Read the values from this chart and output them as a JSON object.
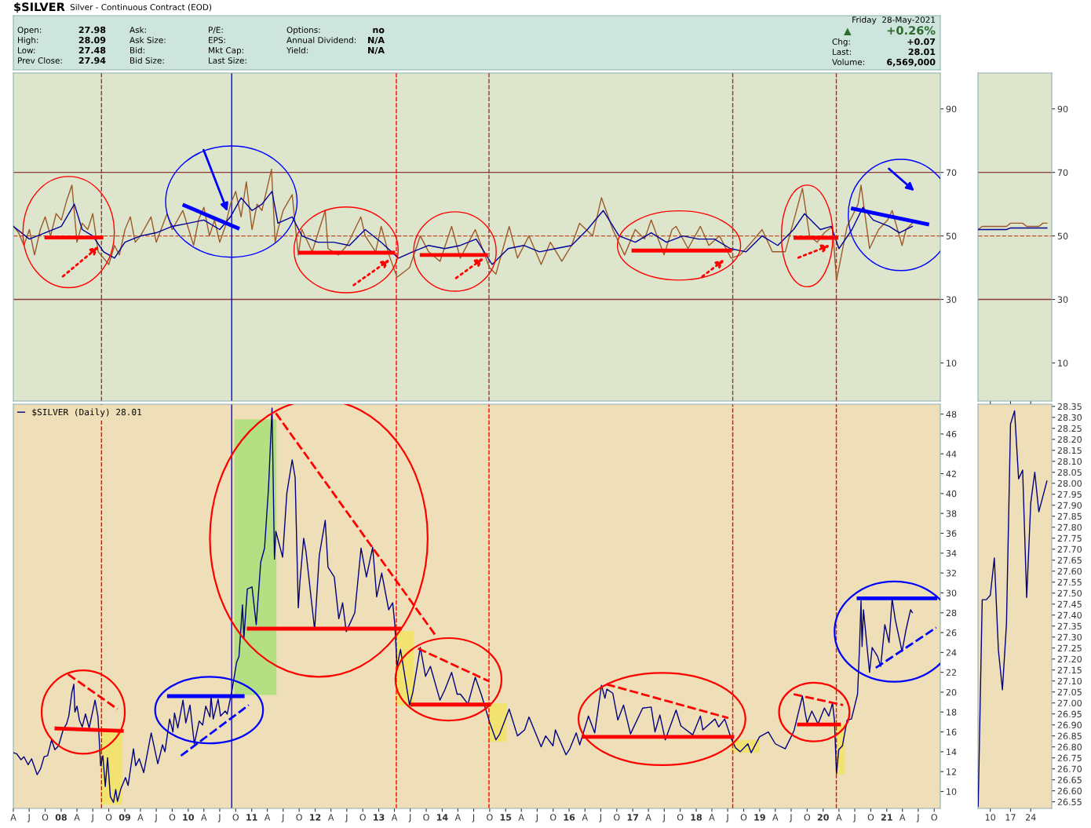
{
  "chart_data": [
    {
      "type": "other",
      "title": "$SILVER",
      "subtitle": "Silver - Continuous Contract (EOD)",
      "annotations": [
        "Open:",
        "27.98",
        "High:",
        "28.09",
        "Low:",
        "27.48",
        "Prev Close:",
        "27.94",
        "Ask:",
        "Ask Size:",
        "Bid:",
        "Bid Size:",
        "P/E:",
        "EPS:",
        "Mkt Cap:",
        "Last Size:",
        "Options:",
        "no",
        "Annual Dividend:",
        "N/A",
        "Yield:",
        "N/A",
        "Friday  28-May-2021",
        "▲",
        "+0.26%",
        "Chg:",
        "+0.07",
        "Last:",
        "28.01",
        "Volume:",
        "6,569,000"
      ]
    },
    {
      "type": "line",
      "xlim": [
        "2007-04-01",
        "2021-11-05"
      ],
      "ylim": [
        -2,
        101.3
      ],
      "yticks": [
        10,
        30,
        50,
        70,
        90
      ],
      "tick_labels": "y",
      "grid": false,
      "legend": false,
      "marker": "none",
      "series": [
        {
          "color": "#9c5a2a",
          "x": [
            "2007-04-02",
            "2007-05-01",
            "2007-06-01",
            "2007-07-02",
            "2007-08-01",
            "2007-09-03",
            "2007-10-01",
            "2007-11-01",
            "2007-12-03",
            "2008-01-02",
            "2008-02-01",
            "2008-03-03",
            "2008-04-01",
            "2008-05-01",
            "2008-06-02",
            "2008-07-01",
            "2008-08-01",
            "2008-09-01",
            "2008-10-01",
            "2008-11-03",
            "2008-12-01",
            "2009-01-02",
            "2009-02-02",
            "2009-03-02",
            "2009-04-01",
            "2009-06-01",
            "2009-07-01",
            "2009-09-01",
            "2009-10-01",
            "2009-12-01",
            "2010-01-04",
            "2010-02-01",
            "2010-03-01",
            "2010-04-01",
            "2010-05-03",
            "2010-06-01",
            "2010-07-01",
            "2010-08-02",
            "2010-09-01",
            "2010-10-01",
            "2010-11-01",
            "2010-12-01",
            "2011-01-03",
            "2011-02-01",
            "2011-03-01",
            "2011-04-25",
            "2011-05-16",
            "2011-06-01",
            "2011-07-01",
            "2011-08-22",
            "2011-09-26",
            "2011-10-17",
            "2011-12-15",
            "2012-02-28",
            "2012-03-15",
            "2012-05-15",
            "2012-07-02",
            "2012-09-20",
            "2012-10-15",
            "2012-12-14",
            "2013-01-15",
            "2013-03-01",
            "2013-04-16",
            "2013-06-27",
            "2013-08-28",
            "2013-10-15",
            "2013-12-19",
            "2014-02-24",
            "2014-04-15",
            "2014-06-02",
            "2014-07-10",
            "2014-09-30",
            "2014-11-06",
            "2015-01-21",
            "2015-03-10",
            "2015-05-15",
            "2015-07-24",
            "2015-09-15",
            "2015-11-20",
            "2016-01-15",
            "2016-03-01",
            "2016-05-15",
            "2016-07-05",
            "2016-09-08",
            "2016-11-15",
            "2017-01-15",
            "2017-03-10",
            "2017-04-17",
            "2017-06-30",
            "2017-08-15",
            "2017-09-07",
            "2017-11-15",
            "2018-01-25",
            "2018-03-15",
            "2018-05-15",
            "2018-07-20",
            "2018-09-11",
            "2018-11-15",
            "2019-01-15",
            "2019-03-15",
            "2019-05-28",
            "2019-07-17",
            "2019-09-04",
            "2019-10-15",
            "2019-11-28",
            "2020-01-08",
            "2020-02-24",
            "2020-03-18",
            "2020-05-18",
            "2020-07-20",
            "2020-08-06",
            "2020-09-24",
            "2020-11-15",
            "2021-01-06",
            "2021-02-01",
            "2021-03-30",
            "2021-04-22",
            "2021-05-28"
          ],
          "values": [
            53,
            51,
            47,
            52,
            44,
            52,
            56,
            50,
            57,
            55,
            61,
            66,
            48,
            54,
            52,
            57,
            45,
            43,
            41,
            47,
            44,
            52,
            56,
            48,
            50,
            56,
            48,
            57,
            52,
            58,
            52,
            47,
            55,
            59,
            50,
            55,
            48,
            53,
            60,
            64,
            56,
            67,
            52,
            60,
            58,
            71,
            48,
            52,
            58,
            63,
            44,
            52,
            45,
            58,
            46,
            44,
            47,
            56,
            50,
            45,
            53,
            44,
            37,
            40,
            50,
            45,
            42,
            53,
            43,
            48,
            52,
            40,
            38,
            53,
            43,
            50,
            41,
            48,
            42,
            47,
            54,
            50,
            62,
            52,
            44,
            52,
            49,
            55,
            44,
            52,
            53,
            46,
            53,
            47,
            50,
            43,
            44,
            48,
            52,
            45,
            45,
            55,
            65,
            50,
            48,
            51,
            53,
            36,
            53,
            60,
            66,
            46,
            52,
            55,
            58,
            47,
            52,
            54
          ]
        },
        {
          "color": "#000099",
          "x": [
            "2007-04-02",
            "2007-07-02",
            "2007-10-01",
            "2008-01-02",
            "2008-03-17",
            "2008-05-01",
            "2008-07-01",
            "2008-09-01",
            "2008-11-03",
            "2009-01-02",
            "2009-04-01",
            "2009-07-01",
            "2009-10-01",
            "2010-01-04",
            "2010-04-01",
            "2010-07-01",
            "2010-09-01",
            "2010-11-01",
            "2011-01-03",
            "2011-03-01",
            "2011-04-28",
            "2011-06-01",
            "2011-08-22",
            "2011-10-17",
            "2012-01-16",
            "2012-04-16",
            "2012-07-16",
            "2012-10-15",
            "2013-01-15",
            "2013-04-25",
            "2013-07-15",
            "2013-10-15",
            "2014-01-15",
            "2014-04-15",
            "2014-07-15",
            "2014-10-15",
            "2015-01-15",
            "2015-04-15",
            "2015-07-15",
            "2015-10-15",
            "2016-01-15",
            "2016-04-15",
            "2016-07-15",
            "2016-10-14",
            "2017-01-16",
            "2017-04-17",
            "2017-07-14",
            "2017-10-16",
            "2018-01-15",
            "2018-04-16",
            "2018-07-16",
            "2018-10-15",
            "2019-01-15",
            "2019-04-15",
            "2019-07-15",
            "2019-09-16",
            "2019-12-16",
            "2020-02-17",
            "2020-04-01",
            "2020-06-15",
            "2020-08-17",
            "2020-10-15",
            "2021-01-15",
            "2021-03-15",
            "2021-05-28"
          ],
          "values": [
            53,
            49,
            51,
            53,
            60,
            52,
            50,
            45,
            43,
            48,
            50,
            51,
            53,
            54,
            55,
            52,
            56,
            62,
            58,
            60,
            64,
            54,
            56,
            50,
            48,
            48,
            47,
            52,
            48,
            43,
            45,
            47,
            46,
            47,
            49,
            41,
            46,
            47,
            45,
            46,
            47,
            52,
            58,
            50,
            48,
            51,
            48,
            50,
            49,
            49,
            46,
            45,
            50,
            47,
            52,
            57,
            52,
            53,
            46,
            52,
            59,
            55,
            53,
            51,
            53
          ]
        },
        {
          "color": "#ff0000",
          "line_style": "solid",
          "x": [
            "2007-10-08",
            "2008-08-20"
          ],
          "values": [
            49.5,
            49.5
          ]
        },
        {
          "color": "#ff0000",
          "line_style": "solid",
          "x": [
            "2011-10-08",
            "2013-03-25"
          ],
          "values": [
            44.7,
            44.7
          ]
        },
        {
          "color": "#ff0000",
          "line_style": "solid",
          "x": [
            "2013-09-05",
            "2014-09-10"
          ],
          "values": [
            44,
            44
          ]
        },
        {
          "color": "#ff0000",
          "line_style": "solid",
          "x": [
            "2017-01-05",
            "2018-07-15"
          ],
          "values": [
            45.4,
            45.4
          ]
        },
        {
          "color": "#ff0000",
          "line_style": "solid",
          "x": [
            "2019-07-26",
            "2020-03-17"
          ],
          "values": [
            49.4,
            49.4
          ]
        },
        {
          "color": "#0000ff",
          "line_style": "solid",
          "x": [
            "2009-12-10",
            "2010-10-12"
          ],
          "values": [
            59.6,
            52.5
          ]
        },
        {
          "color": "#0000ff",
          "line_style": "solid",
          "x": [
            "2020-06-20",
            "2021-08-22"
          ],
          "values": [
            58.6,
            53.7
          ]
        }
      ],
      "ref_lines": [
        {
          "axis": "y",
          "value": 70,
          "color": "#8b3a3a",
          "line_style": "solid"
        },
        {
          "axis": "y",
          "value": 30,
          "color": "#8b3a3a",
          "line_style": "solid"
        },
        {
          "axis": "y",
          "value": 50,
          "color": "#c0502a",
          "line_style": "dashed"
        },
        {
          "axis": "x",
          "value": "2008-08-20",
          "color": "#8b3a3a",
          "line_style": "dashed"
        },
        {
          "axis": "x",
          "value": "2010-09-08",
          "color": "#0000ff",
          "line_style": "solid"
        },
        {
          "axis": "x",
          "value": "2013-04-12",
          "color": "#ff0000",
          "line_style": "dashed"
        },
        {
          "axis": "x",
          "value": "2014-09-27",
          "color": "#8b3a3a",
          "line_style": "dashed"
        },
        {
          "axis": "x",
          "value": "2018-07-30",
          "color": "#8b3a3a",
          "line_style": "dashed"
        },
        {
          "axis": "x",
          "value": "2020-03-17",
          "color": "#ff0000",
          "line_style": "dashed"
        }
      ]
    },
    {
      "type": "line",
      "xlim": [
        "2007-04-01",
        "2021-11-05"
      ],
      "ylim": [
        8.3,
        49.0
      ],
      "yticks": [
        10,
        12,
        14,
        16,
        18,
        20,
        22,
        24,
        26,
        28,
        30,
        32,
        34,
        36,
        38,
        40,
        42,
        44,
        46,
        48
      ],
      "grid": false,
      "legend": "top left",
      "marker": "none",
      "xticks": [
        {
          "value": "2007-04-01",
          "label": "A"
        },
        {
          "value": "2007-07-01",
          "label": "J"
        },
        {
          "value": "2007-10-01",
          "label": "O"
        },
        {
          "value": "2008-01-01",
          "label": "08"
        },
        {
          "value": "2008-04-01",
          "label": "A"
        },
        {
          "value": "2008-07-01",
          "label": "J"
        },
        {
          "value": "2008-10-01",
          "label": "O"
        },
        {
          "value": "2009-01-01",
          "label": "09"
        },
        {
          "value": "2009-04-01",
          "label": "A"
        },
        {
          "value": "2009-07-01",
          "label": "J"
        },
        {
          "value": "2009-10-01",
          "label": "O"
        },
        {
          "value": "2010-01-01",
          "label": "10"
        },
        {
          "value": "2010-04-01",
          "label": "A"
        },
        {
          "value": "2010-07-01",
          "label": "J"
        },
        {
          "value": "2010-10-01",
          "label": "O"
        },
        {
          "value": "2011-01-01",
          "label": "11"
        },
        {
          "value": "2011-04-01",
          "label": "A"
        },
        {
          "value": "2011-07-01",
          "label": "J"
        },
        {
          "value": "2011-10-01",
          "label": "O"
        },
        {
          "value": "2012-01-01",
          "label": "12"
        },
        {
          "value": "2012-04-01",
          "label": "A"
        },
        {
          "value": "2012-07-01",
          "label": "J"
        },
        {
          "value": "2012-10-01",
          "label": "O"
        },
        {
          "value": "2013-01-01",
          "label": "13"
        },
        {
          "value": "2013-04-01",
          "label": "A"
        },
        {
          "value": "2013-07-01",
          "label": "J"
        },
        {
          "value": "2013-10-01",
          "label": "O"
        },
        {
          "value": "2014-01-01",
          "label": "14"
        },
        {
          "value": "2014-04-01",
          "label": "A"
        },
        {
          "value": "2014-07-01",
          "label": "J"
        },
        {
          "value": "2014-10-01",
          "label": "O"
        },
        {
          "value": "2015-01-01",
          "label": "15"
        },
        {
          "value": "2015-04-01",
          "label": "A"
        },
        {
          "value": "2015-07-01",
          "label": "J"
        },
        {
          "value": "2015-10-01",
          "label": "O"
        },
        {
          "value": "2016-01-01",
          "label": "16"
        },
        {
          "value": "2016-04-01",
          "label": "A"
        },
        {
          "value": "2016-07-01",
          "label": "J"
        },
        {
          "value": "2016-10-01",
          "label": "O"
        },
        {
          "value": "2017-01-01",
          "label": "17"
        },
        {
          "value": "2017-04-01",
          "label": "A"
        },
        {
          "value": "2017-07-01",
          "label": "J"
        },
        {
          "value": "2017-10-01",
          "label": "O"
        },
        {
          "value": "2018-01-01",
          "label": "18"
        },
        {
          "value": "2018-04-01",
          "label": "A"
        },
        {
          "value": "2018-07-01",
          "label": "J"
        },
        {
          "value": "2018-10-01",
          "label": "O"
        },
        {
          "value": "2019-01-01",
          "label": "19"
        },
        {
          "value": "2019-04-01",
          "label": "A"
        },
        {
          "value": "2019-07-01",
          "label": "J"
        },
        {
          "value": "2019-10-01",
          "label": "O"
        },
        {
          "value": "2020-01-01",
          "label": "20"
        },
        {
          "value": "2020-04-01",
          "label": "A"
        },
        {
          "value": "2020-07-01",
          "label": "J"
        },
        {
          "value": "2020-10-01",
          "label": "O"
        },
        {
          "value": "2021-01-01",
          "label": "21"
        },
        {
          "value": "2021-04-01",
          "label": "A"
        },
        {
          "value": "2021-07-01",
          "label": "J"
        },
        {
          "value": "2021-10-01",
          "label": "O"
        }
      ],
      "series": [
        {
          "name": "$SILVER (Daily) 28.01",
          "color": "#000080",
          "x": [
            "2007-04-02",
            "2007-04-20",
            "2007-05-15",
            "2007-06-01",
            "2007-06-25",
            "2007-07-15",
            "2007-08-16",
            "2007-09-05",
            "2007-09-25",
            "2007-10-15",
            "2007-11-07",
            "2007-11-26",
            "2007-12-17",
            "2008-01-14",
            "2008-02-01",
            "2008-02-14",
            "2008-03-03",
            "2008-03-14",
            "2008-03-20",
            "2008-04-01",
            "2008-04-15",
            "2008-05-01",
            "2008-05-20",
            "2008-06-10",
            "2008-07-14",
            "2008-07-31",
            "2008-08-15",
            "2008-08-28",
            "2008-09-11",
            "2008-09-24",
            "2008-10-10",
            "2008-10-28",
            "2008-11-10",
            "2008-11-20",
            "2008-12-10",
            "2009-01-05",
            "2009-01-20",
            "2009-02-20",
            "2009-03-05",
            "2009-03-25",
            "2009-04-20",
            "2009-06-02",
            "2009-07-10",
            "2009-08-06",
            "2009-08-20",
            "2009-09-16",
            "2009-10-05",
            "2009-10-14",
            "2009-11-02",
            "2009-12-02",
            "2009-12-18",
            "2010-01-11",
            "2010-02-05",
            "2010-03-05",
            "2010-03-25",
            "2010-04-12",
            "2010-05-06",
            "2010-05-12",
            "2010-05-25",
            "2010-06-22",
            "2010-07-06",
            "2010-08-02",
            "2010-08-13",
            "2010-09-10",
            "2010-10-06",
            "2010-10-20",
            "2010-11-09",
            "2010-11-17",
            "2010-12-07",
            "2011-01-03",
            "2011-01-27",
            "2011-02-22",
            "2011-03-16",
            "2011-04-08",
            "2011-04-28",
            "2011-05-12",
            "2011-05-20",
            "2011-06-28",
            "2011-07-22",
            "2011-08-22",
            "2011-09-08",
            "2011-09-26",
            "2011-10-05",
            "2011-10-27",
            "2011-11-09",
            "2011-12-29",
            "2012-01-25",
            "2012-02-28",
            "2012-03-15",
            "2012-04-20",
            "2012-05-16",
            "2012-06-07",
            "2012-06-28",
            "2012-07-24",
            "2012-08-16",
            "2012-09-21",
            "2012-10-22",
            "2012-11-27",
            "2012-12-20",
            "2013-01-18",
            "2013-02-27",
            "2013-03-22",
            "2013-04-03",
            "2013-04-16",
            "2013-05-06",
            "2013-06-27",
            "2013-07-16",
            "2013-08-28",
            "2013-09-27",
            "2013-10-25",
            "2013-12-19",
            "2014-01-15",
            "2014-02-24",
            "2014-03-28",
            "2014-04-16",
            "2014-05-29",
            "2014-07-10",
            "2014-08-15",
            "2014-09-30",
            "2014-11-06",
            "2014-11-28",
            "2015-01-21",
            "2015-03-10",
            "2015-04-20",
            "2015-05-15",
            "2015-07-24",
            "2015-08-19",
            "2015-09-30",
            "2015-10-14",
            "2015-12-14",
            "2016-01-05",
            "2016-02-11",
            "2016-03-02",
            "2016-04-21",
            "2016-05-27",
            "2016-07-05",
            "2016-07-25",
            "2016-08-05",
            "2016-09-08",
            "2016-10-07",
            "2016-11-09",
            "2016-12-19",
            "2017-02-27",
            "2017-04-17",
            "2017-05-09",
            "2017-06-06",
            "2017-07-07",
            "2017-09-07",
            "2017-10-05",
            "2017-12-12",
            "2018-01-25",
            "2018-02-08",
            "2018-04-19",
            "2018-05-10",
            "2018-06-14",
            "2018-07-20",
            "2018-08-15",
            "2018-09-11",
            "2018-10-25",
            "2018-11-13",
            "2018-12-31",
            "2019-02-20",
            "2019-04-01",
            "2019-05-28",
            "2019-07-17",
            "2019-09-04",
            "2019-09-20",
            "2019-10-01",
            "2019-10-28",
            "2019-12-03",
            "2020-01-08",
            "2020-02-03",
            "2020-02-24",
            "2020-03-06",
            "2020-03-18",
            "2020-03-31",
            "2020-04-21",
            "2020-05-18",
            "2020-06-12",
            "2020-07-17",
            "2020-07-28",
            "2020-08-06",
            "2020-08-12",
            "2020-08-20",
            "2020-09-24",
            "2020-10-09",
            "2020-11-09",
            "2020-11-27",
            "2020-12-21",
            "2021-01-14",
            "2021-02-01",
            "2021-02-19",
            "2021-03-30",
            "2021-04-22",
            "2021-05-18",
            "2021-05-28"
          ],
          "values": [
            13.9,
            13.8,
            13.2,
            13.5,
            12.7,
            13.3,
            11.7,
            12.3,
            13.5,
            13.6,
            15.2,
            14.2,
            14.6,
            16.3,
            16.8,
            17.6,
            20.0,
            20.8,
            18.0,
            18.6,
            17.2,
            16.5,
            17.8,
            16.4,
            19.2,
            17.5,
            12.6,
            13.6,
            10.5,
            13.4,
            9.5,
            8.9,
            10.2,
            9.0,
            10.3,
            11.4,
            10.6,
            14.3,
            12.6,
            13.3,
            11.9,
            15.9,
            12.8,
            14.7,
            14.0,
            17.3,
            16.0,
            17.9,
            16.4,
            19.2,
            16.9,
            18.7,
            14.8,
            17.1,
            16.7,
            18.6,
            17.5,
            19.6,
            17.3,
            19.3,
            17.6,
            18.1,
            17.8,
            20.2,
            23.0,
            23.6,
            28.8,
            25.4,
            30.4,
            30.6,
            26.8,
            33.1,
            34.5,
            40.6,
            48.6,
            33.4,
            36.2,
            33.6,
            40.0,
            43.4,
            41.6,
            28.5,
            31.0,
            35.5,
            34.2,
            26.3,
            33.8,
            37.3,
            32.6,
            31.6,
            27.4,
            29.0,
            26.1,
            27.1,
            28.0,
            34.5,
            31.6,
            34.6,
            29.6,
            32.0,
            28.3,
            29.0,
            26.9,
            22.6,
            24.3,
            18.7,
            20.0,
            24.5,
            21.6,
            22.6,
            19.2,
            20.2,
            22.0,
            19.8,
            19.8,
            18.8,
            21.5,
            19.7,
            17.0,
            15.2,
            15.8,
            18.3,
            15.6,
            16.2,
            17.5,
            14.5,
            15.6,
            14.6,
            16.2,
            13.7,
            14.3,
            15.9,
            14.7,
            17.6,
            15.9,
            20.7,
            19.4,
            20.3,
            19.9,
            17.2,
            18.7,
            15.8,
            18.4,
            18.5,
            16.0,
            17.7,
            15.2,
            18.2,
            16.6,
            15.7,
            17.6,
            16.2,
            17.3,
            16.5,
            17.3,
            15.4,
            14.4,
            14.0,
            14.8,
            13.9,
            15.5,
            16.0,
            14.8,
            14.3,
            16.1,
            19.6,
            17.9,
            16.9,
            18.1,
            16.8,
            18.4,
            17.6,
            18.9,
            17.2,
            11.8,
            14.2,
            14.6,
            17.2,
            17.3,
            19.8,
            24.4,
            29.2,
            24.6,
            28.3,
            22.0,
            24.5,
            23.6,
            22.6,
            26.8,
            25.0,
            29.4,
            27.3,
            24.1,
            26.3,
            28.3,
            28.01
          ]
        },
        {
          "color": "#ff0000",
          "line_style": "solid",
          "x": [
            "2007-12-05",
            "2008-12-15"
          ],
          "values": [
            16.35,
            16.1
          ]
        },
        {
          "color": "#ff0000",
          "line_style": "dashed",
          "x": [
            "2008-02-10",
            "2008-11-20"
          ],
          "values": [
            21.8,
            18.3
          ]
        },
        {
          "color": "#0000ff",
          "line_style": "solid",
          "x": [
            "2009-09-12",
            "2010-11-10"
          ],
          "values": [
            19.6,
            19.6
          ]
        },
        {
          "color": "#0000ff",
          "line_style": "dashed",
          "x": [
            "2009-11-20",
            "2010-12-15"
          ],
          "values": [
            13.6,
            18.7
          ]
        },
        {
          "color": "#ff0000",
          "line_style": "solid",
          "x": [
            "2010-12-15",
            "2013-05-01"
          ],
          "values": [
            26.4,
            26.4
          ]
        },
        {
          "color": "#ff0000",
          "line_style": "dashed",
          "x": [
            "2011-05-20",
            "2013-11-20"
          ],
          "values": [
            48.1,
            25.8
          ]
        },
        {
          "color": "#ff0000",
          "line_style": "dashed",
          "x": [
            "2013-08-15",
            "2014-09-27"
          ],
          "values": [
            24.4,
            21.1
          ]
        },
        {
          "color": "#ff0000",
          "line_style": "solid",
          "x": [
            "2013-07-12",
            "2014-09-27"
          ],
          "values": [
            18.75,
            18.75
          ]
        },
        {
          "color": "#ff0000",
          "line_style": "dashed",
          "x": [
            "2016-08-03",
            "2018-07-05"
          ],
          "values": [
            20.8,
            17.4
          ]
        },
        {
          "color": "#ff0000",
          "line_style": "solid",
          "x": [
            "2016-03-25",
            "2018-07-27"
          ],
          "values": [
            15.5,
            15.5
          ]
        },
        {
          "color": "#ff0000",
          "line_style": "dashed",
          "x": [
            "2019-07-15",
            "2020-04-25"
          ],
          "values": [
            19.8,
            18.7
          ]
        },
        {
          "color": "#ff0000",
          "line_style": "solid",
          "x": [
            "2019-08-15",
            "2020-04-01"
          ],
          "values": [
            16.75,
            16.75
          ]
        },
        {
          "color": "#0000ff",
          "line_style": "solid",
          "x": [
            "2020-07-23",
            "2021-10-08"
          ],
          "values": [
            29.45,
            29.45
          ]
        },
        {
          "color": "#0000ff",
          "line_style": "dashed",
          "x": [
            "2020-10-30",
            "2021-10-12"
          ],
          "values": [
            22.45,
            26.5
          ]
        }
      ],
      "ref_lines": [
        {
          "axis": "x",
          "value": "2008-08-20",
          "color": "#ff0000",
          "line_style": "dashed"
        },
        {
          "axis": "x",
          "value": "2010-09-08",
          "color": "#0000ff",
          "line_style": "solid"
        },
        {
          "axis": "x",
          "value": "2013-04-12",
          "color": "#ff0000",
          "line_style": "dashed"
        },
        {
          "axis": "x",
          "value": "2014-09-27",
          "color": "#ff0000",
          "line_style": "dashed"
        },
        {
          "axis": "x",
          "value": "2018-07-30",
          "color": "#ff0000",
          "line_style": "dashed"
        },
        {
          "axis": "x",
          "value": "2020-03-17",
          "color": "#ff0000",
          "line_style": "dashed"
        }
      ]
    },
    {
      "type": "line",
      "categories": [
        null,
        null,
        null,
        "10",
        null,
        null,
        null,
        null,
        "17",
        null,
        null,
        null,
        null,
        "24",
        null,
        null,
        null,
        null
      ],
      "ylim": [
        -2,
        101.3
      ],
      "yticks": [
        10,
        30,
        50,
        70,
        90
      ],
      "tick_labels": "y",
      "grid": false,
      "legend": false,
      "marker": "none",
      "series": [
        {
          "color": "#9c5a2a",
          "values": [
            52,
            53,
            53,
            53,
            53,
            53,
            53,
            53,
            54,
            54,
            54,
            54,
            53,
            53,
            53,
            53,
            54,
            54
          ]
        },
        {
          "color": "#000099",
          "values": [
            52,
            52,
            52,
            52,
            52,
            52,
            52,
            52,
            52.5,
            52.5,
            52.5,
            52.5,
            52.5,
            52.5,
            52.5,
            52.5,
            52.5,
            52.5
          ]
        }
      ],
      "ref_lines": [
        {
          "axis": "y",
          "value": 70,
          "color": "#8b3a3a",
          "line_style": "solid"
        },
        {
          "axis": "y",
          "value": 30,
          "color": "#8b3a3a",
          "line_style": "solid"
        },
        {
          "axis": "y",
          "value": 50,
          "color": "#c0502a",
          "line_style": "dashed"
        }
      ]
    },
    {
      "type": "line",
      "categories": [
        null,
        null,
        null,
        "10",
        null,
        null,
        null,
        null,
        "17",
        null,
        null,
        null,
        null,
        "24",
        null,
        null,
        null,
        null
      ],
      "ylim": [
        26.52,
        28.36
      ],
      "grid": false,
      "legend": false,
      "marker": "none",
      "yticks": [
        {
          "value": 26.55,
          "label": "26.55"
        },
        {
          "value": 26.6,
          "label": "26.60"
        },
        {
          "value": 26.65,
          "label": "26.65"
        },
        {
          "value": 26.7,
          "label": "26.70"
        },
        {
          "value": 26.75,
          "label": "26.75"
        },
        {
          "value": 26.8,
          "label": "26.80"
        },
        {
          "value": 26.85,
          "label": "26.85"
        },
        {
          "value": 26.9,
          "label": "26.90"
        },
        {
          "value": 26.95,
          "label": "26.95"
        },
        {
          "value": 27.0,
          "label": "27.00"
        },
        {
          "value": 27.05,
          "label": "27.05"
        },
        {
          "value": 27.1,
          "label": "27.10"
        },
        {
          "value": 27.15,
          "label": "27.15"
        },
        {
          "value": 27.2,
          "label": "27.20"
        },
        {
          "value": 27.25,
          "label": "27.25"
        },
        {
          "value": 27.3,
          "label": "27.30"
        },
        {
          "value": 27.35,
          "label": "27.35"
        },
        {
          "value": 27.4,
          "label": "27.40"
        },
        {
          "value": 27.45,
          "label": "27.45"
        },
        {
          "value": 27.5,
          "label": "27.50"
        },
        {
          "value": 27.55,
          "label": "27.55"
        },
        {
          "value": 27.6,
          "label": "27.60"
        },
        {
          "value": 27.65,
          "label": "27.65"
        },
        {
          "value": 27.7,
          "label": "27.70"
        },
        {
          "value": 27.75,
          "label": "27.75"
        },
        {
          "value": 27.8,
          "label": "27.80"
        },
        {
          "value": 27.85,
          "label": "27.85"
        },
        {
          "value": 27.9,
          "label": "27.90"
        },
        {
          "value": 27.95,
          "label": "27.95"
        },
        {
          "value": 28.0,
          "label": "28.00"
        },
        {
          "value": 28.05,
          "label": "28.05"
        },
        {
          "value": 28.1,
          "label": "28.10"
        },
        {
          "value": 28.15,
          "label": "28.15"
        },
        {
          "value": 28.2,
          "label": "28.20"
        },
        {
          "value": 28.25,
          "label": "28.25"
        },
        {
          "value": 28.3,
          "label": "28.30"
        },
        {
          "value": 28.35,
          "label": "28.35"
        }
      ],
      "series": [
        {
          "color": "#000080",
          "values": [
            26.53,
            27.47,
            27.47,
            27.49,
            27.66,
            27.24,
            27.06,
            27.36,
            28.27,
            28.33,
            28.02,
            28.06,
            27.48,
            27.91,
            28.05,
            27.87,
            27.94,
            28.01
          ]
        }
      ]
    }
  ]
}
